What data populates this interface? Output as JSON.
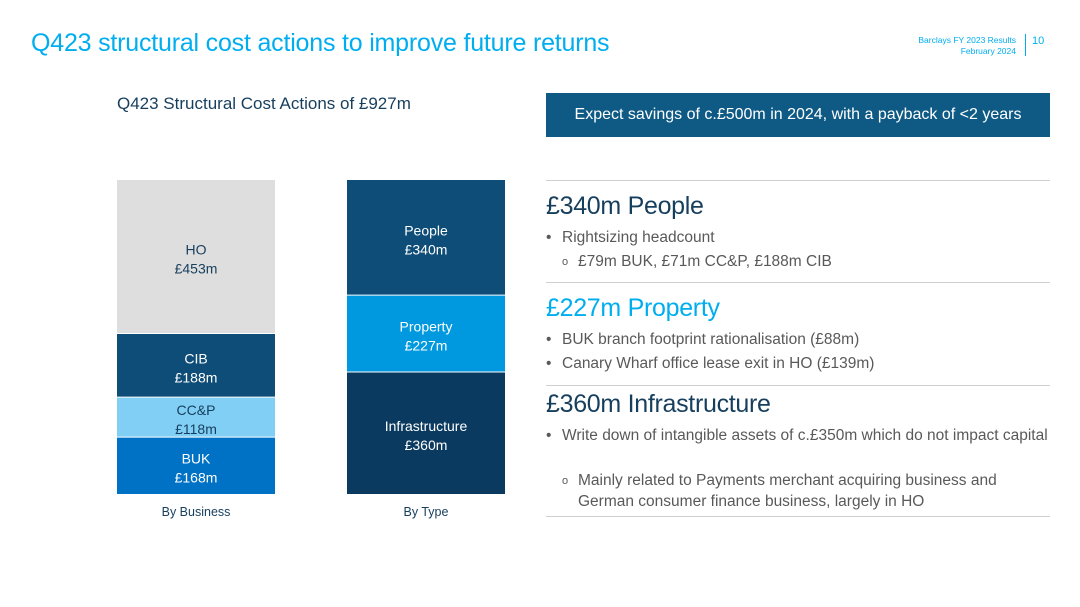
{
  "title": "Q423 structural cost actions to improve future returns",
  "header": {
    "line1": "Barclays FY 2023 Results",
    "line2": "February 2024",
    "page_number": "10"
  },
  "colors": {
    "accent": "#00AEEF",
    "navy": "#163E5D",
    "banner": "#0E5A85"
  },
  "chart_data": {
    "type": "bar",
    "stacked": true,
    "title": "Q423 Structural Cost Actions of £927m",
    "unit": "£m",
    "total": 927,
    "bars": [
      {
        "category": "By Business",
        "segments": [
          {
            "label": "BUK",
            "display": "£168m",
            "value": 168,
            "color": "#0072C6",
            "text_color": "#ffffff"
          },
          {
            "label": "CC&P",
            "display": "£118m",
            "value": 118,
            "color": "#81CFF4",
            "text_color": "#163E5D"
          },
          {
            "label": "CIB",
            "display": "£188m",
            "value": 188,
            "color": "#0E4D78",
            "text_color": "#ffffff"
          },
          {
            "label": "HO",
            "display": "£453m",
            "value": 453,
            "color": "#DEDEDE",
            "text_color": "#163E5D"
          }
        ]
      },
      {
        "category": "By Type",
        "segments": [
          {
            "label": "Infrastructure",
            "display": "£360m",
            "value": 360,
            "color": "#0A3A5F",
            "text_color": "#ffffff"
          },
          {
            "label": "Property",
            "display": "£227m",
            "value": 227,
            "color": "#0099E0",
            "text_color": "#ffffff"
          },
          {
            "label": "People",
            "display": "£340m",
            "value": 340,
            "color": "#0E4D78",
            "text_color": "#ffffff"
          }
        ]
      }
    ]
  },
  "banner": "Expect savings of c.£500m in 2024, with a payback of <2 years",
  "sections": {
    "people": {
      "heading": "£340m People",
      "bullet1": "Rightsizing headcount",
      "sub1": "£79m BUK, £71m CC&P, £188m CIB"
    },
    "property": {
      "heading": "£227m Property",
      "bullet1": "BUK branch footprint rationalisation (£88m)",
      "bullet2": "Canary Wharf office lease exit in HO (£139m)"
    },
    "infrastructure": {
      "heading": "£360m Infrastructure",
      "bullet1": "Write down of intangible assets of c.£350m which do not impact capital",
      "sub1": "Mainly related to Payments merchant acquiring business and German consumer finance business, largely in HO"
    }
  },
  "glyphs": {
    "bullet": "•",
    "sub_bullet": "o"
  }
}
